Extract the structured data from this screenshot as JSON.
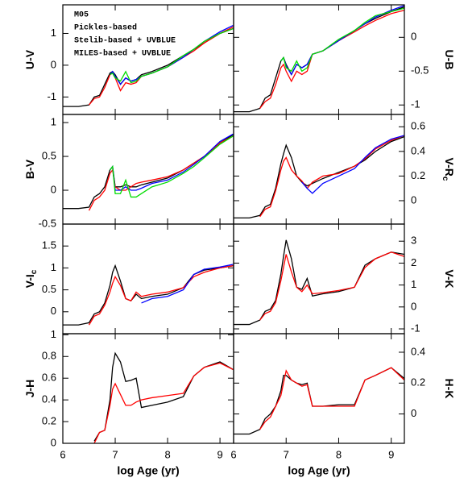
{
  "chart_data": [
    {
      "type": "line",
      "ylabel": "U-V",
      "ylim": [
        -1.55,
        1.9
      ],
      "yticks": [
        -1,
        0,
        1
      ],
      "xlim": [
        6,
        9.26
      ],
      "xticks": [
        6,
        7,
        8,
        9
      ],
      "x": [
        6.0,
        6.3,
        6.5,
        6.6,
        6.7,
        6.8,
        6.9,
        6.95,
        7.0,
        7.1,
        7.2,
        7.3,
        7.4,
        7.5,
        7.7,
        8.0,
        8.3,
        8.5,
        8.7,
        9.0,
        9.25
      ],
      "series": [
        {
          "name": "M05",
          "color": "#000000",
          "values": [
            -1.3,
            -1.3,
            -1.25,
            -1.0,
            -0.95,
            -0.6,
            -0.25,
            -0.2,
            -0.3,
            -0.6,
            -0.4,
            -0.5,
            -0.45,
            -0.3,
            -0.2,
            0,
            0.3,
            0.5,
            0.7,
            1.0,
            1.15
          ]
        },
        {
          "name": "Pickles-based",
          "color": "#ff0000",
          "values": [
            null,
            null,
            -1.25,
            -1.05,
            -1.0,
            -0.7,
            -0.3,
            -0.25,
            -0.4,
            -0.8,
            -0.55,
            -0.6,
            -0.55,
            -0.35,
            -0.25,
            -0.05,
            0.25,
            0.45,
            0.7,
            1.0,
            1.2
          ]
        },
        {
          "name": "Stelib-based + UVBLUE",
          "color": "#0000ff",
          "values": [
            null,
            null,
            null,
            null,
            null,
            null,
            -0.3,
            -0.2,
            -0.35,
            -0.6,
            -0.4,
            -0.5,
            -0.45,
            -0.35,
            -0.25,
            -0.05,
            0.25,
            0.5,
            0.75,
            1.05,
            1.25
          ]
        },
        {
          "name": "MILES-based + UVBLUE",
          "color": "#00dd00",
          "values": [
            null,
            null,
            null,
            null,
            null,
            null,
            -0.3,
            -0.25,
            -0.4,
            -0.5,
            -0.2,
            -0.55,
            -0.5,
            -0.35,
            -0.25,
            -0.05,
            0.3,
            0.5,
            0.75,
            1.0,
            1.15
          ]
        }
      ]
    },
    {
      "type": "line",
      "ylabel": "U-B",
      "ylim": [
        -1.14,
        0.48
      ],
      "yticks": [
        -1,
        -0.5,
        0
      ],
      "xlim": [
        6,
        9.25
      ],
      "xticks": [
        6,
        7,
        8,
        9
      ],
      "x": [
        6.0,
        6.3,
        6.5,
        6.6,
        6.7,
        6.8,
        6.9,
        6.95,
        7.0,
        7.1,
        7.2,
        7.3,
        7.4,
        7.5,
        7.7,
        8.0,
        8.3,
        8.5,
        8.7,
        9.0,
        9.25
      ],
      "series": [
        {
          "color": "#000000",
          "values": [
            -1.1,
            -1.1,
            -1.05,
            -0.9,
            -0.85,
            -0.6,
            -0.35,
            -0.3,
            -0.4,
            -0.55,
            -0.4,
            -0.45,
            -0.4,
            -0.25,
            -0.2,
            -0.05,
            0.1,
            0.2,
            0.28,
            0.38,
            0.45
          ]
        },
        {
          "color": "#ff0000",
          "values": [
            null,
            null,
            -1.05,
            -0.95,
            -0.9,
            -0.7,
            -0.45,
            -0.4,
            -0.5,
            -0.65,
            -0.5,
            -0.55,
            -0.5,
            -0.25,
            -0.2,
            -0.05,
            0.08,
            0.17,
            0.25,
            0.35,
            0.4
          ]
        },
        {
          "color": "#0000ff",
          "values": [
            null,
            null,
            null,
            null,
            null,
            null,
            -0.35,
            -0.3,
            -0.42,
            -0.55,
            -0.4,
            -0.45,
            -0.4,
            -0.25,
            -0.2,
            -0.05,
            0.1,
            0.2,
            0.3,
            0.4,
            0.47
          ]
        },
        {
          "color": "#00dd00",
          "values": [
            null,
            null,
            null,
            null,
            null,
            null,
            -0.35,
            -0.3,
            -0.45,
            -0.5,
            -0.35,
            -0.5,
            -0.45,
            -0.25,
            -0.2,
            -0.03,
            0.1,
            0.22,
            0.32,
            0.38,
            0.43
          ]
        }
      ]
    },
    {
      "type": "line",
      "ylabel": "B-V",
      "ylim": [
        -0.5,
        1.12
      ],
      "yticks": [
        -0.5,
        0,
        0.5,
        1
      ],
      "xlim": [
        6,
        9.26
      ],
      "xticks": [
        6,
        7,
        8,
        9
      ],
      "x": [
        6.0,
        6.3,
        6.5,
        6.6,
        6.7,
        6.8,
        6.9,
        6.95,
        7.0,
        7.1,
        7.2,
        7.3,
        7.4,
        7.5,
        7.7,
        8.0,
        8.3,
        8.5,
        8.7,
        9.0,
        9.25
      ],
      "series": [
        {
          "color": "#000000",
          "values": [
            -0.27,
            -0.27,
            -0.25,
            -0.1,
            -0.05,
            0.05,
            0.3,
            0.35,
            0.05,
            0.05,
            0.08,
            0.05,
            0.05,
            0.08,
            0.12,
            0.18,
            0.3,
            0.4,
            0.5,
            0.7,
            0.82
          ]
        },
        {
          "color": "#ff0000",
          "values": [
            null,
            null,
            -0.3,
            -0.15,
            -0.1,
            0.0,
            0.25,
            0.3,
            0.05,
            0.0,
            0.0,
            0.05,
            0.1,
            0.12,
            0.15,
            0.2,
            0.3,
            0.4,
            0.5,
            0.7,
            0.8
          ]
        },
        {
          "color": "#0000ff",
          "values": [
            null,
            null,
            null,
            null,
            null,
            null,
            0.3,
            0.35,
            0.0,
            0.0,
            0.05,
            0.0,
            0.0,
            0.03,
            0.1,
            0.15,
            0.27,
            0.38,
            0.5,
            0.72,
            0.83
          ]
        },
        {
          "color": "#00dd00",
          "values": [
            null,
            null,
            null,
            null,
            null,
            null,
            0.3,
            0.35,
            -0.05,
            -0.05,
            0.15,
            -0.1,
            -0.1,
            -0.05,
            0.05,
            0.12,
            0.25,
            0.35,
            0.48,
            0.68,
            0.8
          ]
        }
      ]
    },
    {
      "type": "line",
      "ylabel": "V-R",
      "ylabel_sub": "c",
      "ylim": [
        -0.19,
        0.7
      ],
      "yticks": [
        0,
        0.2,
        0.4,
        0.6
      ],
      "xlim": [
        6,
        9.25
      ],
      "xticks": [
        6,
        7,
        8,
        9
      ],
      "x": [
        6.0,
        6.3,
        6.5,
        6.6,
        6.7,
        6.8,
        6.9,
        6.95,
        7.0,
        7.1,
        7.2,
        7.3,
        7.4,
        7.5,
        7.7,
        8.0,
        8.3,
        8.5,
        8.7,
        9.0,
        9.25
      ],
      "series": [
        {
          "color": "#000000",
          "values": [
            -0.14,
            -0.14,
            -0.12,
            -0.05,
            -0.03,
            0.1,
            0.3,
            0.38,
            0.45,
            0.35,
            0.2,
            0.15,
            0.12,
            0.14,
            0.18,
            0.23,
            0.28,
            0.33,
            0.4,
            0.48,
            0.52
          ]
        },
        {
          "color": "#ff0000",
          "values": [
            null,
            null,
            -0.13,
            -0.07,
            -0.05,
            0.08,
            0.25,
            0.32,
            0.35,
            0.25,
            0.2,
            0.16,
            0.1,
            0.15,
            0.2,
            0.22,
            0.28,
            0.34,
            0.42,
            0.49,
            0.53
          ]
        },
        {
          "color": "#0000ff",
          "values": [
            null,
            null,
            null,
            null,
            null,
            null,
            null,
            null,
            null,
            null,
            null,
            0.15,
            0.1,
            0.06,
            0.14,
            0.2,
            0.26,
            0.35,
            0.43,
            0.5,
            0.53
          ]
        }
      ]
    },
    {
      "type": "line",
      "ylabel": "V-I",
      "ylabel_sub": "c",
      "ylim": [
        -0.5,
        2.0
      ],
      "yticks": [
        0,
        0.5,
        1,
        1.5
      ],
      "xlim": [
        6,
        9.26
      ],
      "xticks": [
        6,
        7,
        8,
        9
      ],
      "x": [
        6.0,
        6.3,
        6.5,
        6.6,
        6.7,
        6.8,
        6.9,
        6.95,
        7.0,
        7.1,
        7.2,
        7.3,
        7.4,
        7.5,
        7.7,
        8.0,
        8.3,
        8.5,
        8.7,
        9.0,
        9.25
      ],
      "series": [
        {
          "color": "#000000",
          "values": [
            -0.3,
            -0.3,
            -0.25,
            -0.05,
            0.0,
            0.2,
            0.6,
            0.9,
            1.05,
            0.7,
            0.3,
            0.25,
            0.4,
            0.3,
            0.35,
            0.4,
            0.55,
            0.85,
            0.95,
            1.0,
            1.05
          ]
        },
        {
          "color": "#ff0000",
          "values": [
            null,
            null,
            -0.3,
            -0.1,
            -0.05,
            0.15,
            0.45,
            0.65,
            0.8,
            0.6,
            0.3,
            0.25,
            0.45,
            0.35,
            0.4,
            0.45,
            0.55,
            0.8,
            0.9,
            1.0,
            1.05
          ]
        },
        {
          "color": "#0000ff",
          "values": [
            null,
            null,
            null,
            null,
            null,
            null,
            null,
            null,
            null,
            null,
            null,
            null,
            null,
            0.2,
            0.3,
            0.35,
            0.5,
            0.85,
            0.97,
            1.02,
            1.08
          ]
        }
      ]
    },
    {
      "type": "line",
      "ylabel": "V-K",
      "ylim": [
        -1.22,
        3.78
      ],
      "yticks": [
        -1,
        0,
        1,
        2,
        3
      ],
      "xlim": [
        6,
        9.25
      ],
      "xticks": [
        6,
        7,
        8,
        9
      ],
      "x": [
        6.0,
        6.3,
        6.5,
        6.6,
        6.7,
        6.8,
        6.9,
        6.95,
        7.0,
        7.1,
        7.2,
        7.3,
        7.4,
        7.5,
        7.7,
        8.0,
        8.3,
        8.5,
        8.7,
        9.0,
        9.25
      ],
      "series": [
        {
          "color": "#000000",
          "values": [
            -0.8,
            -0.8,
            -0.6,
            -0.2,
            -0.1,
            0.3,
            1.5,
            2.3,
            3.05,
            2.2,
            0.9,
            0.8,
            1.3,
            0.5,
            0.6,
            0.7,
            0.9,
            1.9,
            2.2,
            2.5,
            2.4
          ]
        },
        {
          "color": "#ff0000",
          "values": [
            null,
            null,
            -0.6,
            -0.3,
            -0.2,
            0.2,
            1.2,
            1.8,
            2.4,
            1.6,
            0.9,
            0.7,
            1.0,
            0.6,
            0.65,
            0.75,
            0.9,
            1.8,
            2.2,
            2.5,
            2.3
          ]
        }
      ]
    },
    {
      "type": "line",
      "ylabel": "J-H",
      "xlabel": "log Age (yr)",
      "ylim": [
        0,
        1.01
      ],
      "yticks": [
        0,
        0.2,
        0.4,
        0.6,
        0.8,
        1
      ],
      "xlim": [
        6,
        9.26
      ],
      "xticks": [
        6,
        7,
        8,
        9
      ],
      "x": [
        6.0,
        6.3,
        6.5,
        6.6,
        6.7,
        6.8,
        6.9,
        6.95,
        7.0,
        7.1,
        7.2,
        7.3,
        7.4,
        7.5,
        7.7,
        8.0,
        8.3,
        8.5,
        8.7,
        9.0,
        9.25
      ],
      "series": [
        {
          "color": "#000000",
          "values": [
            null,
            null,
            null,
            0.02,
            0.1,
            0.12,
            0.4,
            0.7,
            0.83,
            0.75,
            0.57,
            0.58,
            0.6,
            0.33,
            0.35,
            0.38,
            0.43,
            0.62,
            0.7,
            0.75,
            0.68
          ]
        },
        {
          "color": "#ff0000",
          "values": [
            null,
            null,
            null,
            0.0,
            0.1,
            0.12,
            0.35,
            0.5,
            0.55,
            0.45,
            0.35,
            0.35,
            0.38,
            0.4,
            0.42,
            0.44,
            0.46,
            0.62,
            0.7,
            0.74,
            0.68
          ]
        }
      ]
    },
    {
      "type": "line",
      "ylabel": "H-K",
      "xlabel": "log Age (yr)",
      "ylim": [
        -0.19,
        0.52
      ],
      "yticks": [
        0,
        0.2,
        0.4
      ],
      "xlim": [
        6,
        9.25
      ],
      "xticks": [
        6,
        7,
        8,
        9
      ],
      "x": [
        6.0,
        6.3,
        6.5,
        6.6,
        6.7,
        6.8,
        6.9,
        6.95,
        7.0,
        7.1,
        7.2,
        7.3,
        7.4,
        7.5,
        7.7,
        8.0,
        8.3,
        8.5,
        8.7,
        9.0,
        9.25
      ],
      "series": [
        {
          "color": "#000000",
          "values": [
            -0.13,
            -0.13,
            -0.1,
            -0.03,
            0.0,
            0.05,
            0.15,
            0.25,
            0.25,
            0.22,
            0.2,
            0.19,
            0.2,
            0.05,
            0.05,
            0.06,
            0.06,
            0.22,
            0.25,
            0.3,
            0.23
          ]
        },
        {
          "color": "#ff0000",
          "values": [
            null,
            null,
            -0.1,
            -0.05,
            -0.02,
            0.05,
            0.12,
            0.2,
            0.28,
            0.22,
            0.2,
            0.18,
            0.19,
            0.05,
            0.05,
            0.05,
            0.05,
            0.22,
            0.25,
            0.3,
            0.22
          ]
        }
      ]
    }
  ]
}
